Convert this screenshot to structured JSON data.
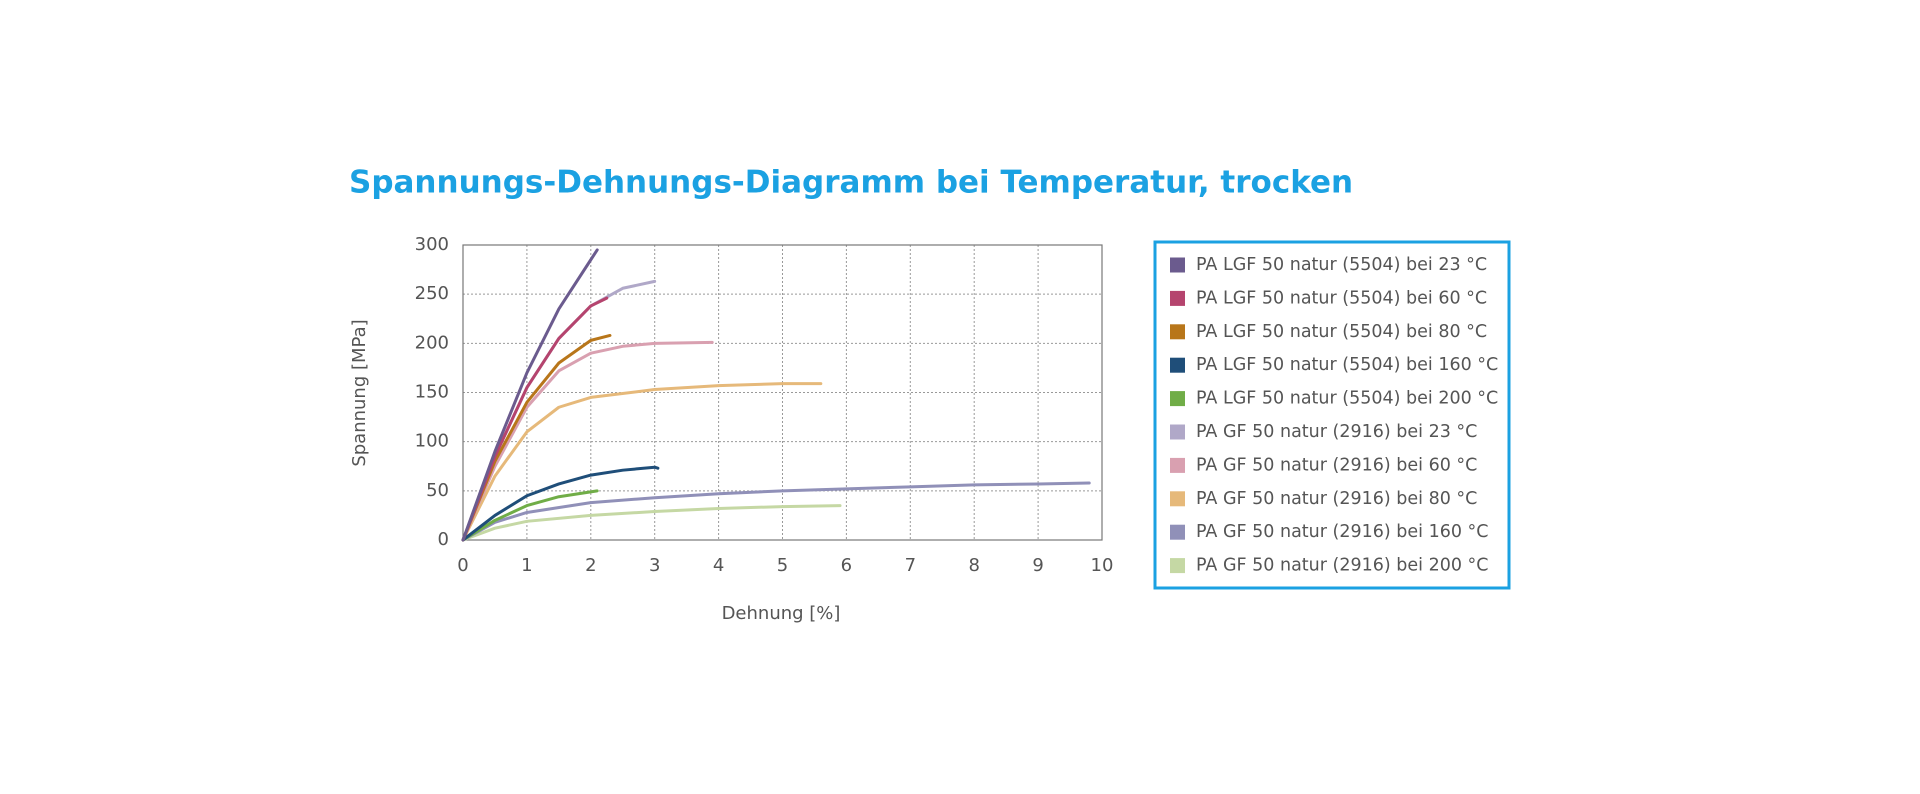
{
  "chart_data": {
    "type": "line",
    "title": "Spannungs-Dehnungs-Diagramm bei Temperatur, trocken",
    "xlabel": "Dehnung [%]",
    "ylabel": "Spannung [MPa]",
    "xlim": [
      0,
      10
    ],
    "xticks": [
      0,
      1,
      2,
      3,
      4,
      5,
      6,
      7,
      8,
      9,
      10
    ],
    "ylim": [
      0,
      300
    ],
    "yticks": [
      0,
      50,
      100,
      150,
      200,
      250,
      300
    ],
    "grid": true,
    "legend": "right",
    "series": [
      {
        "name": "PA LGF 50 natur (5504) bei 23 °C",
        "color": "#6b5b8e",
        "x": [
          0,
          0.5,
          1,
          1.5,
          2,
          2.1
        ],
        "values": [
          0,
          90,
          170,
          235,
          285,
          295
        ]
      },
      {
        "name": "PA LGF 50 natur (5504) bei 60 °C",
        "color": "#b5446e",
        "x": [
          0,
          0.5,
          1,
          1.5,
          2,
          2.25
        ],
        "values": [
          0,
          85,
          155,
          205,
          238,
          246
        ]
      },
      {
        "name": "PA LGF 50 natur (5504) bei 80 °C",
        "color": "#b8761a",
        "x": [
          0,
          0.5,
          1,
          1.5,
          2,
          2.3
        ],
        "values": [
          0,
          80,
          140,
          180,
          203,
          208
        ]
      },
      {
        "name": "PA LGF 50 natur (5504) bei 160 °C",
        "color": "#1f4e79",
        "x": [
          0,
          0.5,
          1,
          1.5,
          2,
          2.5,
          3,
          3.05
        ],
        "values": [
          0,
          25,
          45,
          57,
          66,
          71,
          74,
          73
        ]
      },
      {
        "name": "PA LGF 50 natur (5504) bei 200 °C",
        "color": "#70ad47",
        "x": [
          0,
          0.5,
          1,
          1.5,
          2.1
        ],
        "values": [
          0,
          20,
          35,
          44,
          50
        ]
      },
      {
        "name": "PA GF 50 natur (2916) bei 23 °C",
        "color": "#b0a8c8",
        "x": [
          0,
          0.5,
          1,
          1.5,
          2,
          2.5,
          3
        ],
        "values": [
          0,
          85,
          155,
          205,
          238,
          256,
          263
        ]
      },
      {
        "name": "PA GF 50 natur (2916) bei 60 °C",
        "color": "#d9a0b0",
        "x": [
          0,
          0.5,
          1,
          1.5,
          2,
          2.5,
          3,
          3.9
        ],
        "values": [
          0,
          75,
          135,
          172,
          190,
          197,
          200,
          201
        ]
      },
      {
        "name": "PA GF 50 natur (2916) bei 80 °C",
        "color": "#e6b97a",
        "x": [
          0,
          0.5,
          1,
          1.5,
          2,
          3,
          4,
          5,
          5.6
        ],
        "values": [
          0,
          65,
          110,
          135,
          145,
          153,
          157,
          159,
          159
        ]
      },
      {
        "name": "PA GF 50 natur (2916) bei 160 °C",
        "color": "#9090b8",
        "x": [
          0,
          0.5,
          1,
          2,
          3,
          4,
          5,
          6,
          7,
          8,
          9,
          9.8
        ],
        "values": [
          0,
          18,
          28,
          38,
          43,
          47,
          50,
          52,
          54,
          56,
          57,
          58
        ]
      },
      {
        "name": "PA GF 50 natur (2916) bei 200 °C",
        "color": "#c5d8a4",
        "x": [
          0,
          0.5,
          1,
          2,
          3,
          4,
          5,
          5.9
        ],
        "values": [
          0,
          12,
          19,
          25,
          29,
          32,
          34,
          35
        ]
      }
    ]
  }
}
